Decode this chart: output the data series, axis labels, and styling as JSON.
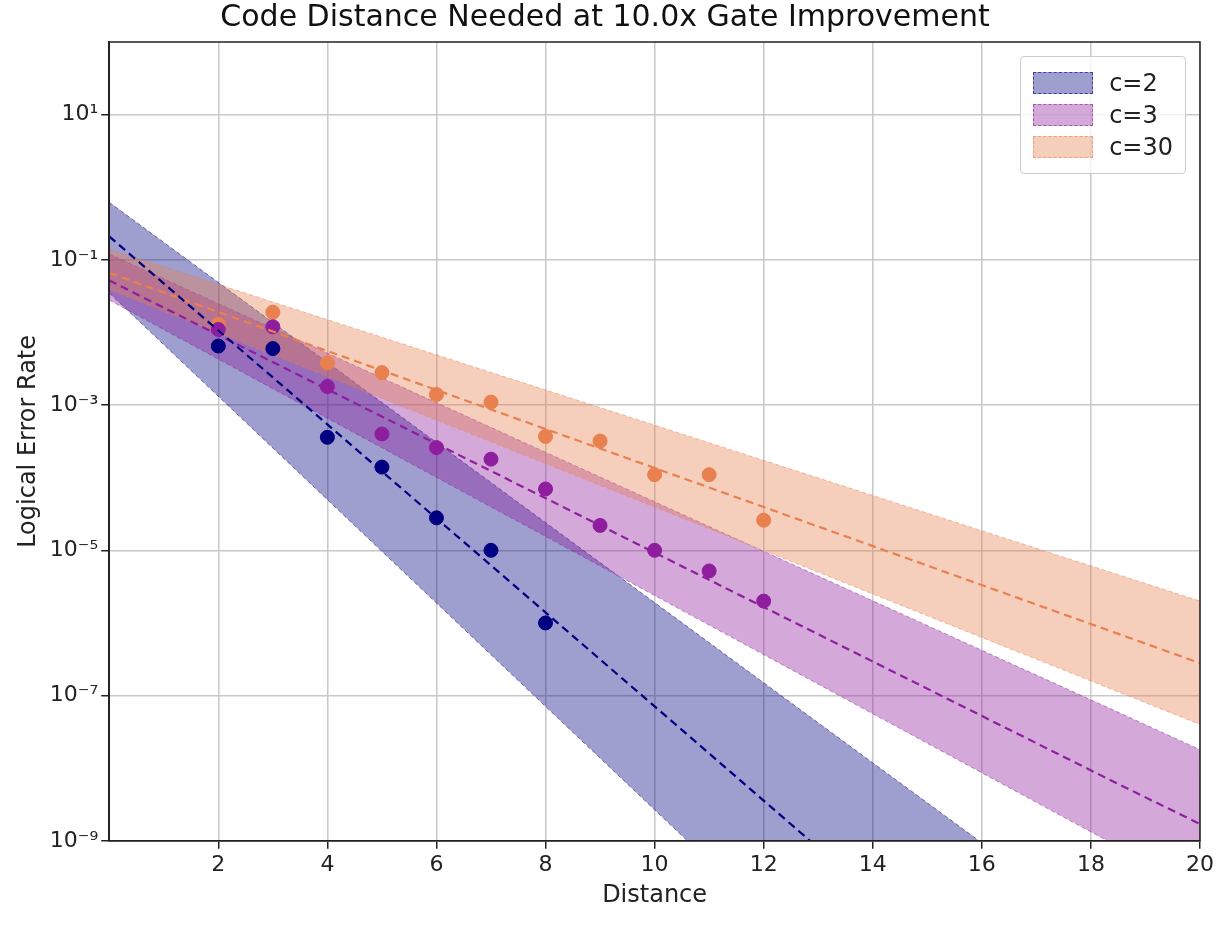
{
  "chart_data": {
    "type": "scatter",
    "title": "Code Distance Needed at 10.0x Gate Improvement",
    "xlabel": "Distance",
    "ylabel": "Logical Error Rate",
    "xlim": [
      0,
      20
    ],
    "xticks": [
      2,
      4,
      6,
      8,
      10,
      12,
      14,
      16,
      18,
      20
    ],
    "ylim": [
      1e-09,
      100
    ],
    "yticks": [
      {
        "value": 10,
        "label": "10¹"
      },
      {
        "value": 0.1,
        "label": "10⁻¹"
      },
      {
        "value": 0.001,
        "label": "10⁻³"
      },
      {
        "value": 1e-05,
        "label": "10⁻⁵"
      },
      {
        "value": 1e-07,
        "label": "10⁻⁷"
      },
      {
        "value": 1e-09,
        "label": "10⁻⁹"
      }
    ],
    "log": "y",
    "grid": true,
    "legend": "top right",
    "series": [
      {
        "name": "c=2",
        "type": "line",
        "marker": "none",
        "line_style": "dashed",
        "color": "#000080",
        "x": [
          0,
          10.6,
          12.85,
          15.95
        ],
        "values": [
          0.21,
          2.9e-08,
          1e-09,
          null
        ],
        "lower": [
          0.035,
          1e-09,
          1e-09,
          1e-09
        ],
        "upper": [
          0.62,
          8.9e-07,
          5.1e-08,
          1e-09
        ]
      },
      {
        "name": "c=3",
        "type": "line",
        "marker": "none",
        "line_style": "dashed",
        "color": "#8e1e9e",
        "x": [
          0,
          18.3,
          20
        ],
        "values": [
          0.052,
          7.2e-09,
          1.7e-09
        ],
        "lower": [
          0.028,
          1e-09,
          1e-09
        ],
        "upper": [
          0.12,
          6.9e-08,
          1.8e-08
        ]
      },
      {
        "name": "c=30",
        "type": "line",
        "marker": "none",
        "line_style": "dashed",
        "color": "#e8804f",
        "x": [
          0,
          20
        ],
        "values": [
          0.066,
          2.8e-07
        ],
        "lower": [
          0.039,
          4e-08
        ],
        "upper": [
          0.14,
          2e-06
        ]
      },
      {
        "type": "scatter",
        "marker": "circle",
        "color": "#000080",
        "x": [
          2,
          3,
          4,
          5,
          6,
          7,
          8
        ],
        "values": [
          0.0065,
          0.006,
          0.00036,
          0.00014,
          2.8e-05,
          1e-05,
          1e-06
        ]
      },
      {
        "type": "scatter",
        "marker": "circle",
        "color": "#8e1e9e",
        "x": [
          2,
          3,
          4,
          5,
          6,
          7,
          8,
          9,
          10,
          11,
          12
        ],
        "values": [
          0.011,
          0.012,
          0.0018,
          0.0004,
          0.00026,
          0.00018,
          7e-05,
          2.2e-05,
          1e-05,
          5.2e-06,
          2e-06
        ]
      },
      {
        "type": "scatter",
        "marker": "circle",
        "color": "#e8804f",
        "x": [
          2,
          3,
          4,
          5,
          6,
          7,
          8,
          9,
          10,
          11,
          12
        ],
        "values": [
          0.013,
          0.019,
          0.0038,
          0.0028,
          0.0014,
          0.0011,
          0.00037,
          0.00032,
          0.00011,
          0.00011,
          2.6e-05
        ]
      }
    ]
  }
}
